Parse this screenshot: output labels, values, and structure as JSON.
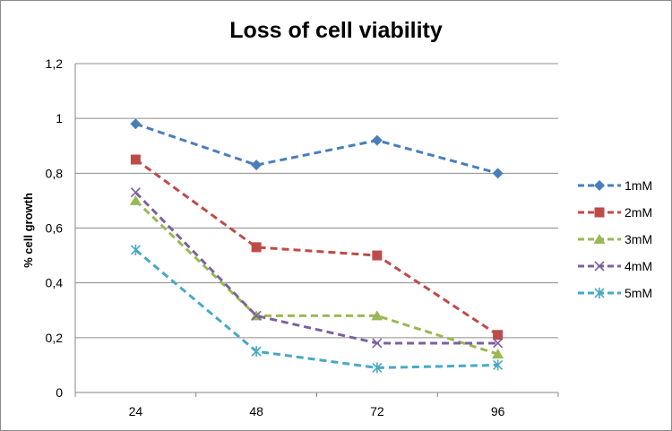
{
  "chart_data": {
    "type": "line",
    "title": "Loss of cell viability",
    "xlabel": "",
    "ylabel": "% cell growth",
    "categories": [
      "24",
      "48",
      "72",
      "96"
    ],
    "y_ticks": [
      "0",
      "0,2",
      "0,4",
      "0,6",
      "0,8",
      "1",
      "1,2"
    ],
    "ylim": [
      0,
      1.2
    ],
    "grid": "horizontal",
    "legend_position": "right",
    "line_style": "dashed",
    "series": [
      {
        "name": "1mM",
        "values": [
          0.98,
          0.83,
          0.92,
          0.8
        ],
        "color": "#4a7ebb",
        "marker": "diamond"
      },
      {
        "name": "2mM",
        "values": [
          0.85,
          0.53,
          0.5,
          0.21
        ],
        "color": "#be4b48",
        "marker": "square"
      },
      {
        "name": "3mM",
        "values": [
          0.7,
          0.28,
          0.28,
          0.14
        ],
        "color": "#98b954",
        "marker": "triangle"
      },
      {
        "name": "4mM",
        "values": [
          0.73,
          0.28,
          0.18,
          0.18
        ],
        "color": "#7d60a0",
        "marker": "x"
      },
      {
        "name": "5mM",
        "values": [
          0.52,
          0.15,
          0.09,
          0.1
        ],
        "color": "#46aac5",
        "marker": "asterisk"
      }
    ]
  }
}
